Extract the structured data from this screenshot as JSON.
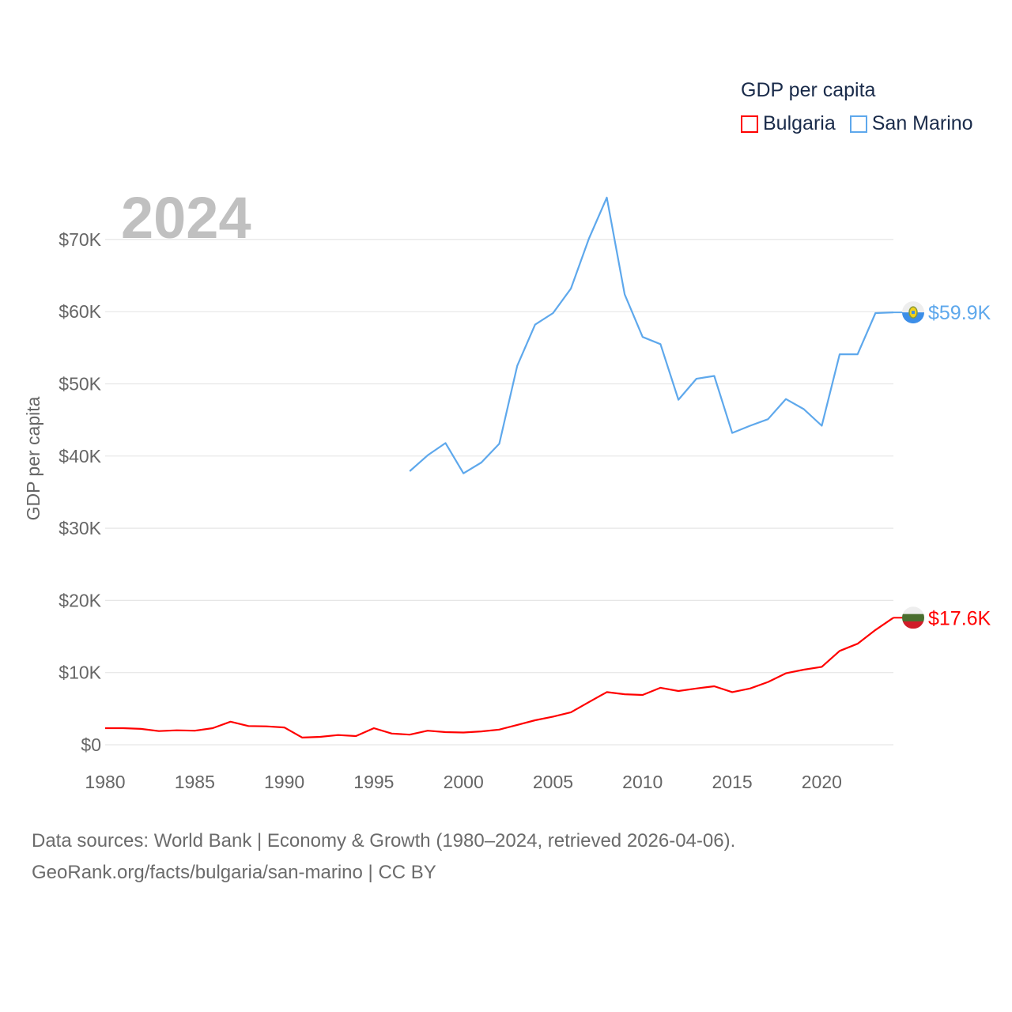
{
  "chart_data": {
    "type": "line",
    "title": "GDP per capita",
    "ylabel": "GDP per capita",
    "xlabel": "",
    "year_watermark": "2024",
    "xlim": [
      1980,
      2024
    ],
    "ylim": [
      0,
      75800
    ],
    "x_ticks": [
      "1980",
      "1985",
      "1990",
      "1995",
      "2000",
      "2005",
      "2010",
      "2015",
      "2020"
    ],
    "y_ticks": [
      {
        "value": 0,
        "label": "$0"
      },
      {
        "value": 10000,
        "label": "$10K"
      },
      {
        "value": 20000,
        "label": "$20K"
      },
      {
        "value": 30000,
        "label": "$30K"
      },
      {
        "value": 40000,
        "label": "$40K"
      },
      {
        "value": 50000,
        "label": "$50K"
      },
      {
        "value": 60000,
        "label": "$60K"
      },
      {
        "value": 70000,
        "label": "$70K"
      }
    ],
    "grid": true,
    "legend_placement": "top-right",
    "series": [
      {
        "name": "Bulgaria",
        "color": "#ff0000",
        "end_label": "$17.6K",
        "flag": "bulgaria-flag",
        "x": [
          1980,
          1981,
          1982,
          1983,
          1984,
          1985,
          1986,
          1987,
          1988,
          1989,
          1990,
          1991,
          1992,
          1993,
          1994,
          1995,
          1996,
          1997,
          1998,
          1999,
          2000,
          2001,
          2002,
          2003,
          2004,
          2005,
          2006,
          2007,
          2008,
          2009,
          2010,
          2011,
          2012,
          2013,
          2014,
          2015,
          2016,
          2017,
          2018,
          2019,
          2020,
          2021,
          2022,
          2023,
          2024
        ],
        "values": [
          2300,
          2300,
          2200,
          1900,
          2000,
          1950,
          2300,
          3200,
          2600,
          2550,
          2400,
          1000,
          1100,
          1350,
          1200,
          2300,
          1550,
          1400,
          1950,
          1750,
          1700,
          1850,
          2100,
          2750,
          3400,
          3900,
          4500,
          5900,
          7300,
          7000,
          6900,
          7900,
          7450,
          7800,
          8100,
          7300,
          7800,
          8700,
          9900,
          10400,
          10800,
          13000,
          14000,
          15900,
          17600
        ]
      },
      {
        "name": "San Marino",
        "color": "#5ea8ec",
        "end_label": "$59.9K",
        "flag": "san-marino-flag",
        "x": [
          1997,
          1998,
          1999,
          2000,
          2001,
          2002,
          2003,
          2004,
          2005,
          2006,
          2007,
          2008,
          2009,
          2010,
          2011,
          2012,
          2013,
          2014,
          2015,
          2016,
          2017,
          2018,
          2019,
          2020,
          2021,
          2022,
          2023,
          2024
        ],
        "values": [
          37900,
          40100,
          41800,
          37600,
          39100,
          41700,
          52500,
          58200,
          59800,
          63200,
          70100,
          75800,
          62400,
          56500,
          55500,
          47800,
          50700,
          51100,
          43200,
          44200,
          45100,
          47900,
          46500,
          44200,
          54100,
          54100,
          59800,
          59900
        ]
      }
    ]
  },
  "footer": {
    "line1": "Data sources: World Bank | Economy & Growth (1980–2024, retrieved 2026-04-06).",
    "line2": "GeoRank.org/facts/bulgaria/san-marino | CC BY"
  }
}
